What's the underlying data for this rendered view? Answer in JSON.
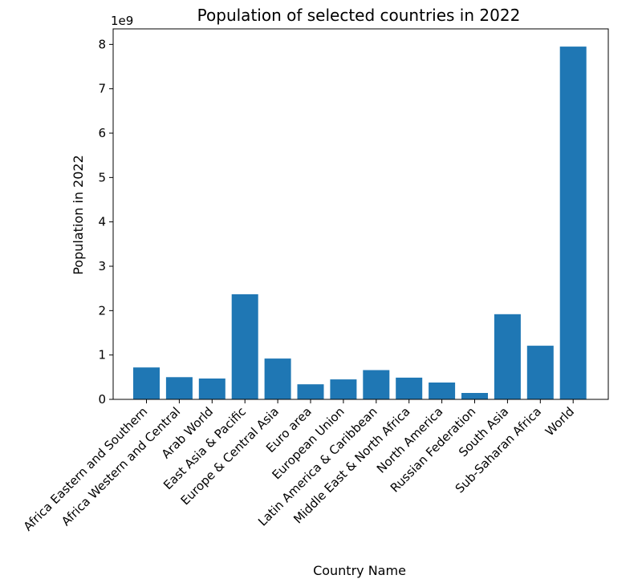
{
  "chart_data": {
    "type": "bar",
    "title": "Population of selected countries in 2022",
    "xlabel": "Country Name",
    "ylabel": "Population in 2022",
    "y_offset_label": "1e9",
    "y_scale": 1000000000,
    "ylim": [
      0,
      8.35
    ],
    "yticks": [
      0,
      1,
      2,
      3,
      4,
      5,
      6,
      7,
      8
    ],
    "bar_color": "#1f77b4",
    "categories": [
      "Africa Eastern and Southern",
      "Africa Western and Central",
      "Arab World",
      "East Asia & Pacific",
      "Europe & Central Asia",
      "Euro area",
      "European Union",
      "Latin America & Caribbean",
      "Middle East & North Africa",
      "North America",
      "Russian Federation",
      "South Asia",
      "Sub-Saharan Africa",
      "World"
    ],
    "values": [
      720000000,
      500000000,
      470000000,
      2370000000,
      920000000,
      340000000,
      450000000,
      660000000,
      490000000,
      380000000,
      144000000,
      1920000000,
      1210000000,
      7950000000
    ]
  }
}
